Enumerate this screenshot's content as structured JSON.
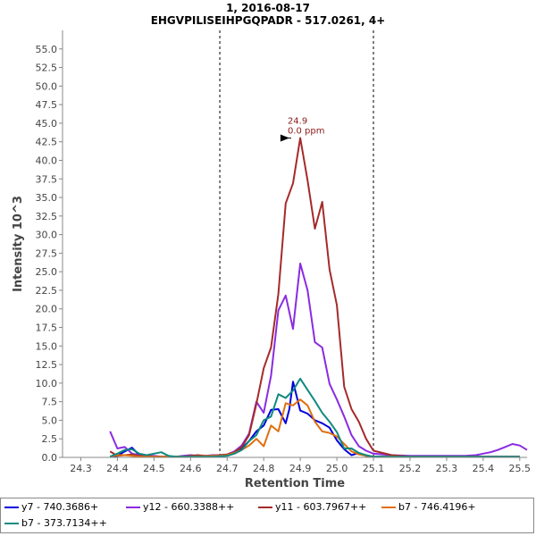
{
  "chart_data": {
    "type": "line",
    "title": "1, 2016-08-17",
    "subtitle": "EHGVPILISEIHPGQPADR - 517.0261, 4+",
    "xlabel": "Retention Time",
    "ylabel": "Intensity 10^3",
    "xlim": [
      24.25,
      25.52
    ],
    "ylim": [
      0,
      57.5
    ],
    "x_ticks": [
      "24.3",
      "24.4",
      "24.5",
      "24.6",
      "24.7",
      "24.8",
      "24.9",
      "25.0",
      "25.1",
      "25.2",
      "25.3",
      "25.4",
      "25.5"
    ],
    "y_ticks": [
      "0.0",
      "2.5",
      "5.0",
      "7.5",
      "10.0",
      "12.5",
      "15.0",
      "17.5",
      "20.0",
      "22.5",
      "25.0",
      "27.5",
      "30.0",
      "32.5",
      "35.0",
      "37.5",
      "40.0",
      "42.5",
      "45.0",
      "47.5",
      "50.0",
      "52.5",
      "55.0"
    ],
    "vlines": [
      24.68,
      25.1
    ],
    "peak_annotation": {
      "x": 24.88,
      "y": 43.0,
      "line1": "24.9",
      "line2": "0.0 ppm"
    },
    "legend_position": "bottom",
    "series": [
      {
        "name": "y7 - 740.3686+",
        "color": "#0000dd",
        "x": [
          24.38,
          24.4,
          24.42,
          24.44,
          24.46,
          24.48,
          24.5,
          24.52,
          24.54,
          24.56,
          24.58,
          24.6,
          24.62,
          24.64,
          24.66,
          24.68,
          24.7,
          24.72,
          24.74,
          24.76,
          24.78,
          24.8,
          24.82,
          24.84,
          24.86,
          24.87,
          24.88,
          24.9,
          24.92,
          24.94,
          24.96,
          24.98,
          25.0,
          25.02,
          25.04,
          25.06,
          25.08,
          25.1,
          25.15,
          25.2,
          25.25,
          25.3,
          25.35,
          25.4,
          25.45,
          25.5
        ],
        "y": [
          0.1,
          0.2,
          0.8,
          1.3,
          0.3,
          0.2,
          0.1,
          0.1,
          0.1,
          0.1,
          0.1,
          0.1,
          0.1,
          0.1,
          0.1,
          0.1,
          0.3,
          0.6,
          1.2,
          2.2,
          3.5,
          4.3,
          6.4,
          6.5,
          4.6,
          6.5,
          10.2,
          6.3,
          5.9,
          5.0,
          4.6,
          4.0,
          2.3,
          1.1,
          0.3,
          0.6,
          0.2,
          0.1,
          0.1,
          0.1,
          0.1,
          0.1,
          0.1,
          0.1,
          0.1,
          0.1
        ]
      },
      {
        "name": "y12 - 660.3388++",
        "color": "#8a2be2",
        "x": [
          24.38,
          24.4,
          24.42,
          24.44,
          24.46,
          24.48,
          24.5,
          24.52,
          24.54,
          24.56,
          24.58,
          24.6,
          24.62,
          24.64,
          24.66,
          24.68,
          24.7,
          24.72,
          24.74,
          24.76,
          24.78,
          24.8,
          24.82,
          24.84,
          24.86,
          24.88,
          24.9,
          24.92,
          24.94,
          24.96,
          24.98,
          25.0,
          25.02,
          25.04,
          25.06,
          25.08,
          25.1,
          25.15,
          25.2,
          25.25,
          25.3,
          25.35,
          25.38,
          25.4,
          25.42,
          25.44,
          25.46,
          25.48,
          25.5,
          25.52
        ],
        "y": [
          3.5,
          1.2,
          1.4,
          0.5,
          0.3,
          0.2,
          0.2,
          0.1,
          0.1,
          0.1,
          0.2,
          0.3,
          0.2,
          0.2,
          0.3,
          0.3,
          0.4,
          0.8,
          1.6,
          3.2,
          7.5,
          6.0,
          11.0,
          19.8,
          21.8,
          17.3,
          26.1,
          22.5,
          15.5,
          14.8,
          9.9,
          7.8,
          5.5,
          3.0,
          1.5,
          0.9,
          0.5,
          0.3,
          0.2,
          0.2,
          0.2,
          0.2,
          0.3,
          0.5,
          0.7,
          1.0,
          1.4,
          1.8,
          1.6,
          1.0
        ]
      },
      {
        "name": "y11 - 603.7967++",
        "color": "#a52a2a",
        "x": [
          24.38,
          24.4,
          24.42,
          24.44,
          24.46,
          24.48,
          24.5,
          24.52,
          24.54,
          24.56,
          24.58,
          24.6,
          24.62,
          24.64,
          24.66,
          24.68,
          24.7,
          24.72,
          24.74,
          24.76,
          24.78,
          24.8,
          24.82,
          24.84,
          24.86,
          24.88,
          24.9,
          24.92,
          24.94,
          24.96,
          24.98,
          25.0,
          25.02,
          25.04,
          25.06,
          25.08,
          25.1,
          25.15,
          25.2,
          25.3,
          25.4,
          25.5
        ],
        "y": [
          0.8,
          0.2,
          0.3,
          0.4,
          0.2,
          0.2,
          0.1,
          0.1,
          0.1,
          0.1,
          0.1,
          0.2,
          0.3,
          0.2,
          0.2,
          0.3,
          0.4,
          0.7,
          1.4,
          3.0,
          7.2,
          12.0,
          14.8,
          22.0,
          34.2,
          36.9,
          43.0,
          37.3,
          30.8,
          34.4,
          25.3,
          20.5,
          9.5,
          6.5,
          4.8,
          2.5,
          0.9,
          0.3,
          0.1,
          0.1,
          0.1,
          0.1
        ]
      },
      {
        "name": "b7 - 746.4196+",
        "color": "#e07010",
        "x": [
          24.38,
          24.4,
          24.42,
          24.44,
          24.46,
          24.48,
          24.5,
          24.6,
          24.66,
          24.68,
          24.7,
          24.72,
          24.74,
          24.76,
          24.78,
          24.8,
          24.82,
          24.84,
          24.86,
          24.88,
          24.9,
          24.92,
          24.94,
          24.96,
          24.98,
          25.0,
          25.02,
          25.04,
          25.06,
          25.08,
          25.1,
          25.2,
          25.3,
          25.4,
          25.5
        ],
        "y": [
          0.1,
          0.3,
          0.3,
          0.2,
          0.1,
          0.1,
          0.1,
          0.1,
          0.2,
          0.2,
          0.3,
          0.6,
          1.0,
          1.6,
          2.5,
          1.5,
          4.3,
          3.5,
          7.3,
          7.0,
          7.8,
          7.0,
          4.8,
          3.5,
          3.3,
          2.8,
          1.8,
          0.8,
          0.4,
          0.2,
          0.1,
          0.1,
          0.1,
          0.1,
          0.1
        ]
      },
      {
        "name": "b7 - 373.7134++",
        "color": "#108a80",
        "x": [
          24.38,
          24.4,
          24.42,
          24.44,
          24.46,
          24.48,
          24.5,
          24.52,
          24.54,
          24.56,
          24.58,
          24.6,
          24.66,
          24.7,
          24.72,
          24.74,
          24.76,
          24.78,
          24.8,
          24.82,
          24.84,
          24.86,
          24.88,
          24.9,
          24.92,
          24.94,
          24.96,
          24.98,
          25.0,
          25.02,
          25.04,
          25.06,
          25.08,
          25.1,
          25.2,
          25.3,
          25.4,
          25.5
        ],
        "y": [
          0.1,
          0.5,
          1.0,
          1.1,
          0.5,
          0.3,
          0.5,
          0.7,
          0.2,
          0.1,
          0.1,
          0.1,
          0.1,
          0.2,
          0.5,
          1.0,
          2.2,
          3.0,
          5.0,
          5.5,
          8.5,
          8.0,
          9.0,
          10.6,
          9.1,
          7.6,
          6.0,
          4.8,
          3.4,
          1.2,
          1.2,
          0.6,
          0.3,
          0.1,
          0.1,
          0.1,
          0.1,
          0.1
        ]
      }
    ]
  }
}
